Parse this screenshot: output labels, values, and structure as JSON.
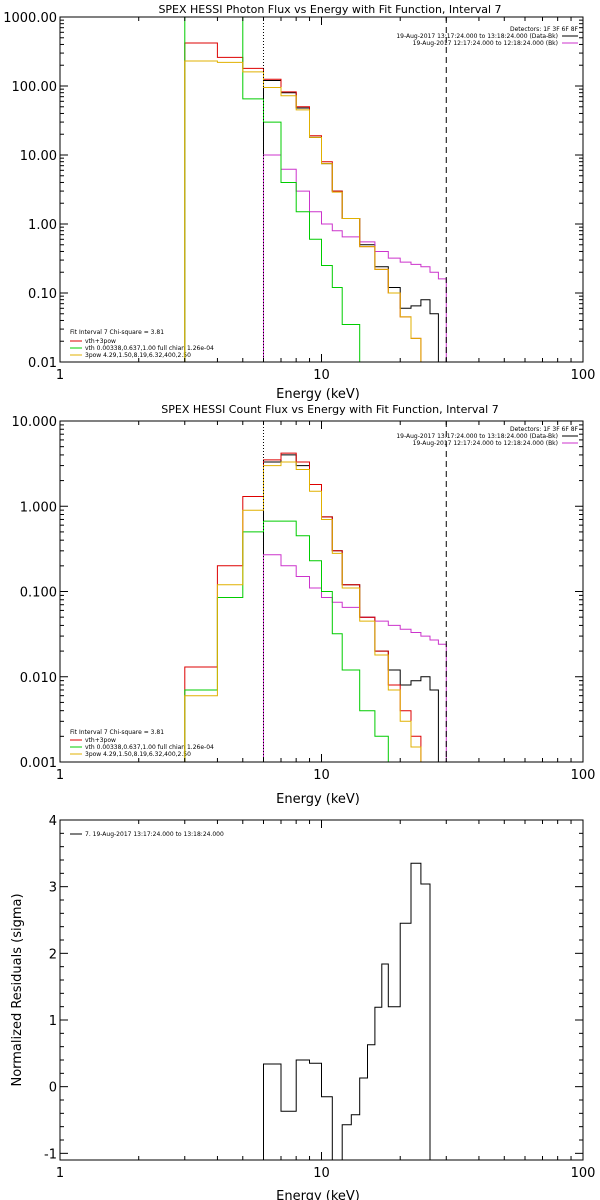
{
  "chart_data": [
    {
      "type": "line",
      "title": "SPEX HESSI Photon Flux vs Energy with Fit Function, Interval 7",
      "xlabel": "Energy (keV)",
      "ylabel": "",
      "xscale": "log",
      "yscale": "log",
      "xlim": [
        1,
        100
      ],
      "ylim": [
        0.01,
        1000
      ],
      "xticks": [
        "1",
        "10",
        "100"
      ],
      "yticks": [
        "0.01",
        "0.10",
        "1.00",
        "10.00",
        "100.00",
        "1000.00"
      ],
      "bin_edges": [
        3,
        4,
        5,
        6,
        7,
        8,
        9,
        10,
        11,
        12,
        14,
        16,
        18,
        20,
        22,
        24,
        26,
        28,
        30
      ],
      "vlines": [
        {
          "x": 6,
          "style": "dotted",
          "color": "#000000"
        },
        {
          "x": 30,
          "style": "dashed",
          "color": "#000000"
        }
      ],
      "legend_top": {
        "position": "top-right",
        "lines": [
          "Detectors: 1F 3F 6F 8F",
          "19-Aug-2017 13:17:24.000 to 13:18:24.000 (Data-Bk)",
          "19-Aug-2017 12:17:24.000 to 12:18:24.000 (Bk)"
        ]
      },
      "legend_fit": {
        "position": "bottom-left",
        "lines": [
          "Fit Interval 7   Chi-square = 3.81",
          "vth+3pow",
          "vth 0.00338,0.637,1.00   full chian 1.26e-04",
          "3pow 4.29,1.50,8.19,6.32,400,2.50"
        ]
      },
      "series": [
        {
          "name": "Data-Bk",
          "color": "#000000",
          "values": [
            null,
            null,
            null,
            120,
            80,
            48,
            18,
            7.5,
            3.0,
            1.2,
            0.5,
            0.24,
            0.12,
            0.06,
            0.065,
            0.08,
            0.05,
            null
          ]
        },
        {
          "name": "Bk",
          "color": "#cc33cc",
          "values": [
            null,
            null,
            null,
            10,
            6.2,
            3.0,
            1.5,
            1.0,
            0.8,
            0.65,
            0.55,
            0.4,
            0.32,
            0.28,
            0.26,
            0.24,
            0.2,
            0.16
          ]
        },
        {
          "name": "vth+3pow",
          "color": "#dd0000",
          "values": [
            420,
            260,
            180,
            125,
            82,
            50,
            19,
            8.0,
            3.0,
            1.2,
            0.47,
            0.22,
            0.1,
            0.045,
            0.022,
            null,
            null,
            null
          ]
        },
        {
          "name": "vth",
          "color": "#00cc00",
          "values": [
            1200,
            1100,
            65,
            30,
            4.0,
            1.5,
            0.6,
            0.25,
            0.12,
            0.035,
            null,
            null,
            null,
            null,
            null,
            null,
            null,
            null
          ]
        },
        {
          "name": "3pow",
          "color": "#e0b000",
          "values": [
            230,
            220,
            160,
            95,
            72,
            45,
            18,
            7.5,
            2.9,
            1.2,
            0.47,
            0.22,
            0.1,
            0.045,
            0.022,
            null,
            null,
            null
          ]
        }
      ]
    },
    {
      "type": "line",
      "title": "SPEX HESSI Count Flux vs Energy with Fit Function, Interval 7",
      "xlabel": "Energy (keV)",
      "ylabel": "",
      "xscale": "log",
      "yscale": "log",
      "xlim": [
        1,
        100
      ],
      "ylim": [
        0.001,
        10
      ],
      "xticks": [
        "1",
        "10",
        "100"
      ],
      "yticks": [
        "0.001",
        "0.010",
        "0.100",
        "1.000",
        "10.000"
      ],
      "bin_edges": [
        3,
        4,
        5,
        6,
        7,
        8,
        9,
        10,
        11,
        12,
        14,
        16,
        18,
        20,
        22,
        24,
        26,
        28,
        30
      ],
      "vlines": [
        {
          "x": 6,
          "style": "dotted",
          "color": "#000000"
        },
        {
          "x": 30,
          "style": "dashed",
          "color": "#000000"
        }
      ],
      "legend_top": {
        "position": "top-right",
        "lines": [
          "Detectors: 1F 3F 6F 8F",
          "19-Aug-2017 13:17:24.000 to 13:18:24.000 (Data-Bk)",
          "19-Aug-2017 12:17:24.000 to 12:18:24.000 (Bk)"
        ]
      },
      "legend_fit": {
        "position": "bottom-left",
        "lines": [
          "Fit Interval 7   Chi-square = 3.81",
          "vth+3pow",
          "vth 0.00338,0.637,1.00   full chian 1.26e-04",
          "3pow 4.29,1.50,8.19,6.32,400,2.50"
        ]
      },
      "series": [
        {
          "name": "Data-Bk",
          "color": "#000000",
          "values": [
            null,
            null,
            null,
            3.3,
            4.0,
            3.0,
            1.8,
            0.75,
            0.3,
            0.12,
            0.05,
            0.02,
            0.012,
            0.008,
            0.009,
            0.01,
            0.007,
            null
          ]
        },
        {
          "name": "Bk",
          "color": "#cc33cc",
          "values": [
            null,
            null,
            null,
            0.27,
            0.2,
            0.15,
            0.11,
            0.085,
            0.075,
            0.065,
            0.05,
            0.045,
            0.04,
            0.036,
            0.033,
            0.03,
            0.027,
            0.024
          ]
        },
        {
          "name": "vth+3pow",
          "color": "#dd0000",
          "values": [
            0.013,
            0.2,
            1.3,
            3.5,
            4.2,
            3.3,
            1.8,
            0.75,
            0.3,
            0.12,
            0.05,
            0.02,
            0.008,
            0.004,
            0.002,
            null,
            null,
            null
          ]
        },
        {
          "name": "vth",
          "color": "#00cc00",
          "values": [
            0.007,
            0.085,
            0.5,
            0.67,
            0.67,
            0.45,
            0.23,
            0.1,
            0.032,
            0.012,
            0.004,
            0.002,
            null,
            null,
            null,
            null,
            null,
            null
          ]
        },
        {
          "name": "3pow",
          "color": "#e0b000",
          "values": [
            0.006,
            0.12,
            0.9,
            3.0,
            3.3,
            2.7,
            1.5,
            0.7,
            0.28,
            0.11,
            0.045,
            0.018,
            0.007,
            0.003,
            0.0015,
            null,
            null,
            null
          ]
        }
      ]
    },
    {
      "type": "line",
      "title": "",
      "xlabel": "Energy (keV)",
      "ylabel": "Normalized Residuals (sigma)",
      "xscale": "log",
      "yscale": "linear",
      "xlim": [
        1,
        100
      ],
      "ylim": [
        -1.1,
        4
      ],
      "xticks": [
        "1",
        "10",
        "100"
      ],
      "yticks": [
        "-1",
        "0",
        "1",
        "2",
        "3",
        "4"
      ],
      "bin_edges": [
        6,
        7,
        8,
        9,
        10,
        11,
        12,
        13,
        14,
        15,
        16,
        17,
        18,
        20,
        22,
        24,
        26,
        28,
        30
      ],
      "legend_top": {
        "position": "top-left",
        "lines": [
          "7. 19-Aug-2017 13:17:24.000 to 13:18:24.000"
        ]
      },
      "series": [
        {
          "name": "7. 19-Aug-2017 13:17:24.000 to 13:18:24.000",
          "color": "#000000",
          "values": [
            0.34,
            -0.37,
            0.4,
            0.35,
            -0.15,
            -1.1,
            -0.57,
            -0.42,
            0.13,
            0.63,
            1.19,
            1.84,
            1.2,
            2.45,
            3.35,
            3.04,
            null,
            null
          ]
        }
      ]
    }
  ]
}
